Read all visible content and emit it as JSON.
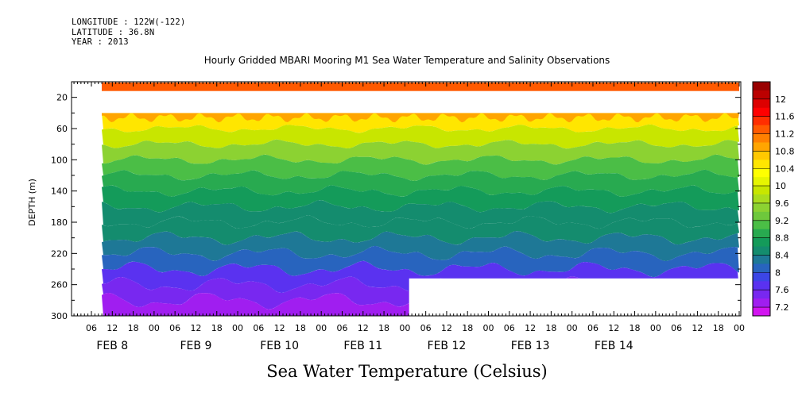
{
  "header": {
    "longitude": "LONGITUDE : 122W(-122)",
    "latitude": "LATITUDE : 36.8N",
    "year": "YEAR : 2013"
  },
  "chart_data": {
    "type": "heatmap",
    "title": "Hourly Gridded MBARI Mooring M1 Sea Water Temperature and Salinity Observations",
    "ylabel": "DEPTH (m)",
    "xlabel": "",
    "caption": "Sea Water Temperature (Celsius)",
    "ylim": [
      300,
      0
    ],
    "y_ticks": [
      20,
      60,
      100,
      140,
      180,
      220,
      260,
      300
    ],
    "x_range_hours": [
      0,
      168
    ],
    "x_hour_ticks": [
      "06",
      "12",
      "18",
      "00",
      "06",
      "12",
      "18",
      "00",
      "06",
      "12",
      "18",
      "00",
      "06",
      "12",
      "18",
      "00",
      "06",
      "12",
      "18",
      "00",
      "06",
      "12",
      "18",
      "00",
      "06",
      "12",
      "18",
      "00",
      "06",
      "12",
      "18",
      "00"
    ],
    "x_day_labels": [
      "FEB  8",
      "FEB  9",
      "FEB 10",
      "FEB 11",
      "FEB 12",
      "FEB 13",
      "FEB 14"
    ],
    "colorbar": {
      "ticks": [
        12,
        11.6,
        11.2,
        10.8,
        10.4,
        10,
        9.6,
        9.2,
        8.8,
        8.4,
        8,
        7.6,
        7.2
      ],
      "levels": [
        {
          "min": 12.2,
          "max": 12.4,
          "color": "#990000"
        },
        {
          "min": 12.0,
          "max": 12.2,
          "color": "#bb0000"
        },
        {
          "min": 11.8,
          "max": 12.0,
          "color": "#dd0000"
        },
        {
          "min": 11.6,
          "max": 11.8,
          "color": "#ff0000"
        },
        {
          "min": 11.4,
          "max": 11.6,
          "color": "#ff2e00"
        },
        {
          "min": 11.2,
          "max": 11.4,
          "color": "#ff5a00"
        },
        {
          "min": 11.0,
          "max": 11.2,
          "color": "#ff8000"
        },
        {
          "min": 10.8,
          "max": 11.0,
          "color": "#ffa500"
        },
        {
          "min": 10.6,
          "max": 10.8,
          "color": "#ffc800"
        },
        {
          "min": 10.4,
          "max": 10.6,
          "color": "#ffe600"
        },
        {
          "min": 10.2,
          "max": 10.4,
          "color": "#ffff00"
        },
        {
          "min": 10.0,
          "max": 10.2,
          "color": "#e6f500"
        },
        {
          "min": 9.8,
          "max": 10.0,
          "color": "#c8e600"
        },
        {
          "min": 9.6,
          "max": 9.8,
          "color": "#aadc1e"
        },
        {
          "min": 9.4,
          "max": 9.6,
          "color": "#8cd232"
        },
        {
          "min": 9.2,
          "max": 9.4,
          "color": "#6ec83c"
        },
        {
          "min": 9.0,
          "max": 9.2,
          "color": "#4bbe46"
        },
        {
          "min": 8.8,
          "max": 9.0,
          "color": "#28aa50"
        },
        {
          "min": 8.6,
          "max": 8.8,
          "color": "#149b5a"
        },
        {
          "min": 8.4,
          "max": 8.6,
          "color": "#148c6e"
        },
        {
          "min": 8.2,
          "max": 8.4,
          "color": "#1e7896"
        },
        {
          "min": 8.0,
          "max": 8.2,
          "color": "#2864be"
        },
        {
          "min": 7.8,
          "max": 8.0,
          "color": "#3c46e6"
        },
        {
          "min": 7.6,
          "max": 7.8,
          "color": "#5a32f0"
        },
        {
          "min": 7.4,
          "max": 7.6,
          "color": "#7828f0"
        },
        {
          "min": 7.2,
          "max": 7.4,
          "color": "#a01ef0"
        },
        {
          "min": 7.0,
          "max": 7.2,
          "color": "#d214f0"
        }
      ]
    },
    "field": {
      "x_hours": [
        0,
        12,
        24,
        36,
        48,
        60,
        72,
        84,
        96,
        108,
        120,
        132,
        144,
        156,
        168
      ],
      "depth_m": [
        10,
        20
      ],
      "surface_band": {
        "depth_range_m": [
          0,
          12
        ],
        "temperature": 11.3
      },
      "no_data_band_m": [
        12,
        40
      ],
      "profile": [
        {
          "depth": 40,
          "temperature": 10.8
        },
        {
          "depth": 60,
          "temperature": 10.0
        },
        {
          "depth": 80,
          "temperature": 9.6
        },
        {
          "depth": 100,
          "temperature": 9.3
        },
        {
          "depth": 120,
          "temperature": 9.0
        },
        {
          "depth": 140,
          "temperature": 8.8
        },
        {
          "depth": 160,
          "temperature": 8.6
        },
        {
          "depth": 180,
          "temperature": 8.5
        },
        {
          "depth": 200,
          "temperature": 8.3
        },
        {
          "depth": 220,
          "temperature": 8.1
        },
        {
          "depth": 240,
          "temperature": 7.9
        },
        {
          "depth": 260,
          "temperature": 7.6
        },
        {
          "depth": 280,
          "temperature": 7.4
        },
        {
          "depth": 300,
          "temperature": 7.3
        }
      ],
      "bottom_no_data": {
        "from_hour": 81,
        "from_depth_m": 252
      }
    }
  }
}
